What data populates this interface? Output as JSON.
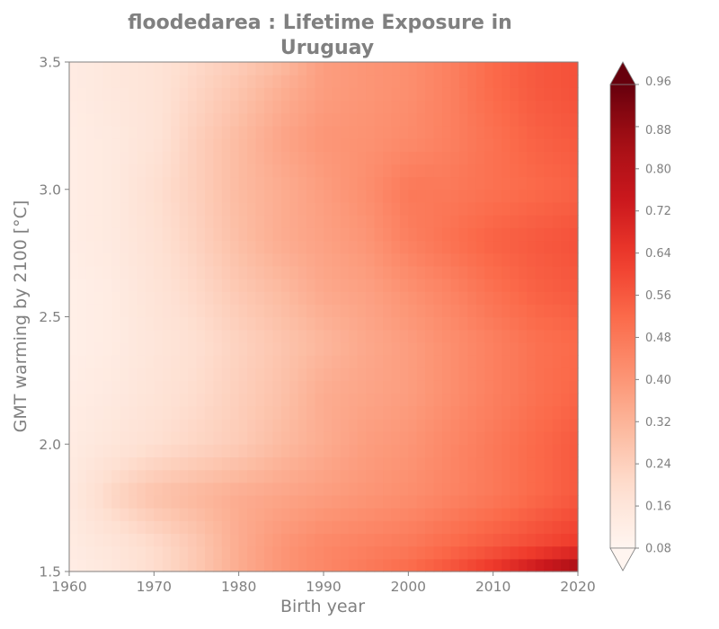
{
  "chart_data": {
    "type": "heatmap",
    "title_lines": [
      "floodedarea : Lifetime Exposure in",
      "Uruguay"
    ],
    "xlabel": "Birth year",
    "ylabel": "GMT warming by 2100 [°C]",
    "xlim": [
      1960,
      2020
    ],
    "ylim": [
      1.5,
      3.5
    ],
    "x_ticks": [
      "1960",
      "1970",
      "1980",
      "1990",
      "2000",
      "2010",
      "2020"
    ],
    "y_ticks": [
      "1.5",
      "2.0",
      "2.5",
      "3.0",
      "3.5"
    ],
    "colormap": "Reds",
    "colorbar": {
      "min": 0.08,
      "max": 0.96,
      "extend": "both",
      "ticks": [
        "0.08",
        "0.16",
        "0.24",
        "0.32",
        "0.40",
        "0.48",
        "0.56",
        "0.64",
        "0.72",
        "0.80",
        "0.88",
        "0.96"
      ]
    },
    "x": [
      1960,
      1965,
      1970,
      1975,
      1980,
      1985,
      1990,
      1995,
      2000,
      2005,
      2010,
      2015,
      2020
    ],
    "y": [
      1.5,
      1.6,
      1.8,
      2.0,
      2.2,
      2.4,
      2.6,
      2.8,
      3.0,
      3.2,
      3.4,
      3.5
    ],
    "z": [
      [
        0.12,
        0.15,
        0.2,
        0.26,
        0.34,
        0.4,
        0.44,
        0.48,
        0.52,
        0.58,
        0.66,
        0.76,
        0.88
      ],
      [
        0.13,
        0.16,
        0.2,
        0.26,
        0.34,
        0.4,
        0.44,
        0.46,
        0.48,
        0.52,
        0.56,
        0.6,
        0.64
      ],
      [
        0.14,
        0.22,
        0.28,
        0.31,
        0.34,
        0.36,
        0.38,
        0.4,
        0.42,
        0.45,
        0.48,
        0.52,
        0.56
      ],
      [
        0.13,
        0.16,
        0.19,
        0.22,
        0.25,
        0.3,
        0.34,
        0.38,
        0.4,
        0.44,
        0.48,
        0.52,
        0.56
      ],
      [
        0.12,
        0.14,
        0.17,
        0.2,
        0.24,
        0.28,
        0.34,
        0.36,
        0.38,
        0.42,
        0.46,
        0.5,
        0.53
      ],
      [
        0.11,
        0.13,
        0.16,
        0.19,
        0.23,
        0.27,
        0.31,
        0.35,
        0.38,
        0.42,
        0.46,
        0.5,
        0.52
      ],
      [
        0.11,
        0.13,
        0.17,
        0.21,
        0.26,
        0.3,
        0.35,
        0.37,
        0.41,
        0.45,
        0.5,
        0.54,
        0.56
      ],
      [
        0.12,
        0.14,
        0.18,
        0.23,
        0.29,
        0.34,
        0.37,
        0.4,
        0.46,
        0.5,
        0.54,
        0.56,
        0.58
      ],
      [
        0.12,
        0.14,
        0.19,
        0.24,
        0.3,
        0.34,
        0.38,
        0.42,
        0.48,
        0.48,
        0.5,
        0.52,
        0.54
      ],
      [
        0.12,
        0.14,
        0.17,
        0.24,
        0.3,
        0.36,
        0.4,
        0.41,
        0.43,
        0.46,
        0.5,
        0.54,
        0.56
      ],
      [
        0.13,
        0.15,
        0.17,
        0.22,
        0.27,
        0.33,
        0.38,
        0.4,
        0.42,
        0.46,
        0.52,
        0.56,
        0.58
      ],
      [
        0.13,
        0.15,
        0.17,
        0.21,
        0.25,
        0.3,
        0.38,
        0.4,
        0.42,
        0.46,
        0.52,
        0.56,
        0.58
      ]
    ]
  }
}
